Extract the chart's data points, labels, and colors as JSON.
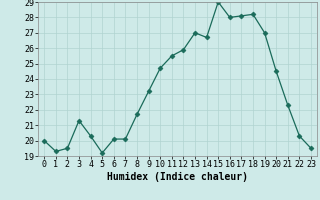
{
  "x": [
    0,
    1,
    2,
    3,
    4,
    5,
    6,
    7,
    8,
    9,
    10,
    11,
    12,
    13,
    14,
    15,
    16,
    17,
    18,
    19,
    20,
    21,
    22,
    23
  ],
  "y": [
    20.0,
    19.3,
    19.5,
    21.3,
    20.3,
    19.2,
    20.1,
    20.1,
    21.7,
    23.2,
    24.7,
    25.5,
    25.9,
    27.0,
    26.7,
    29.0,
    28.0,
    28.1,
    28.2,
    27.0,
    24.5,
    22.3,
    20.3,
    19.5
  ],
  "xlabel": "Humidex (Indice chaleur)",
  "ylim": [
    19,
    29
  ],
  "xlim_min": -0.5,
  "xlim_max": 23.5,
  "yticks": [
    19,
    20,
    21,
    22,
    23,
    24,
    25,
    26,
    27,
    28,
    29
  ],
  "xticks": [
    0,
    1,
    2,
    3,
    4,
    5,
    6,
    7,
    8,
    9,
    10,
    11,
    12,
    13,
    14,
    15,
    16,
    17,
    18,
    19,
    20,
    21,
    22,
    23
  ],
  "line_color": "#1a6b5a",
  "marker": "D",
  "marker_size": 2.5,
  "bg_color": "#ceeae8",
  "grid_color": "#b0d4d0",
  "xlabel_fontsize": 7,
  "tick_fontsize": 6
}
